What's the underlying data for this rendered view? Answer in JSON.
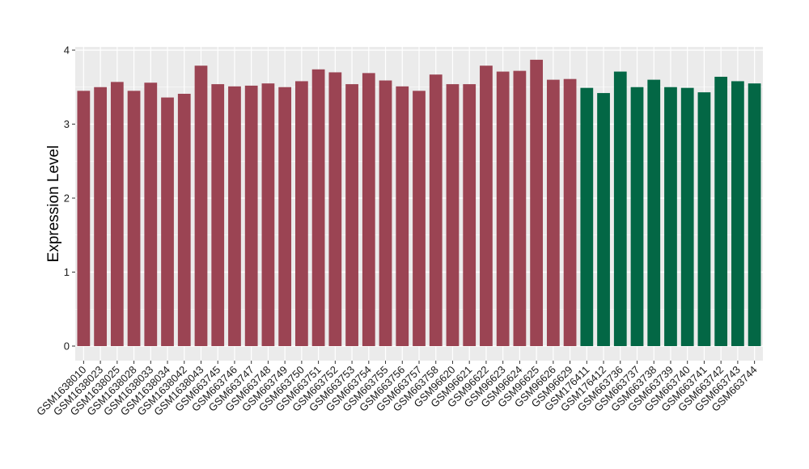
{
  "chart_data": {
    "type": "bar",
    "title": "",
    "xlabel": "",
    "ylabel": "Expression Level",
    "ylim": [
      0,
      4
    ],
    "yticks": [
      "0",
      "1",
      "2",
      "3",
      "4"
    ],
    "grid": true,
    "colors": {
      "group1": "#9b4453",
      "group2": "#036745",
      "panel": "#ebebeb",
      "grid": "#ffffff"
    },
    "categories": [
      "GSM1638010",
      "GSM1638023",
      "GSM1638025",
      "GSM1638028",
      "GSM1638033",
      "GSM1638034",
      "GSM1638042",
      "GSM1638043",
      "GSM663745",
      "GSM663746",
      "GSM663747",
      "GSM663748",
      "GSM663749",
      "GSM663750",
      "GSM663751",
      "GSM663752",
      "GSM663753",
      "GSM663754",
      "GSM663755",
      "GSM663756",
      "GSM663757",
      "GSM663758",
      "GSM96620",
      "GSM96621",
      "GSM96622",
      "GSM96623",
      "GSM96624",
      "GSM96625",
      "GSM96626",
      "GSM96629",
      "GSM176411",
      "GSM176412",
      "GSM663736",
      "GSM663737",
      "GSM663738",
      "GSM663739",
      "GSM663740",
      "GSM663741",
      "GSM663742",
      "GSM663743",
      "GSM663744"
    ],
    "values": [
      3.45,
      3.5,
      3.57,
      3.45,
      3.56,
      3.36,
      3.41,
      3.79,
      3.54,
      3.51,
      3.52,
      3.55,
      3.5,
      3.58,
      3.74,
      3.7,
      3.54,
      3.69,
      3.59,
      3.51,
      3.45,
      3.67,
      3.54,
      3.54,
      3.79,
      3.71,
      3.72,
      3.87,
      3.6,
      3.61,
      3.49,
      3.42,
      3.71,
      3.5,
      3.6,
      3.5,
      3.49,
      3.43,
      3.64,
      3.58,
      3.55
    ],
    "groups": [
      1,
      1,
      1,
      1,
      1,
      1,
      1,
      1,
      1,
      1,
      1,
      1,
      1,
      1,
      1,
      1,
      1,
      1,
      1,
      1,
      1,
      1,
      1,
      1,
      1,
      1,
      1,
      1,
      1,
      1,
      2,
      2,
      2,
      2,
      2,
      2,
      2,
      2,
      2,
      2,
      2
    ]
  }
}
